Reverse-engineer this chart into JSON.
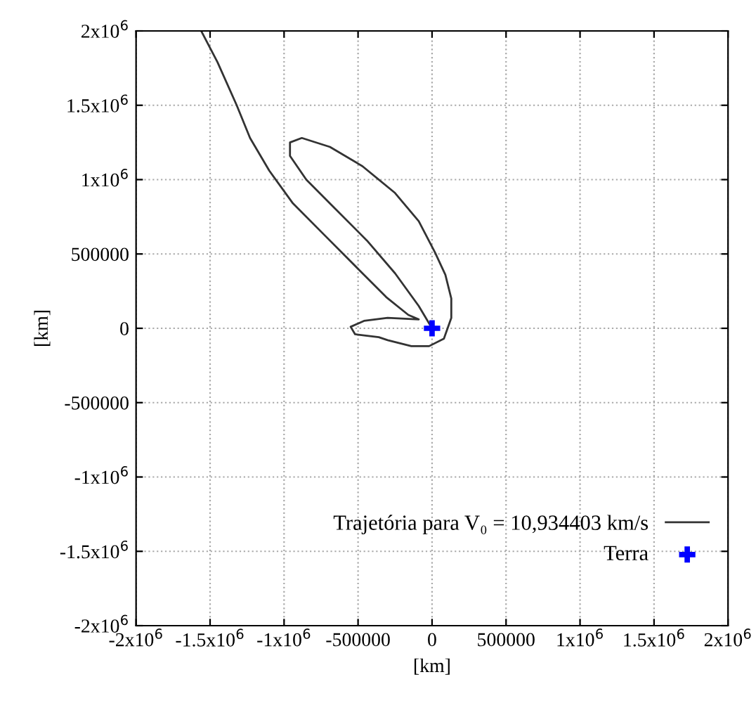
{
  "chart_data": {
    "type": "line",
    "xlabel": "[km]",
    "ylabel": "[km]",
    "series": [
      {
        "name": "Trajetória para V₀ = 10,934403 km/s",
        "color": "#333333",
        "marker": "none",
        "x": [
          -1560000,
          -1450000,
          -1320000,
          -1230000,
          -1100000,
          -940000,
          -720000,
          -500000,
          -310000,
          -160000,
          -90000,
          -300000,
          -460000,
          -550000,
          -520000,
          -360000,
          -300000,
          -140000,
          -20000,
          80000,
          130000,
          130000,
          90000,
          20000,
          -90000,
          -250000,
          -470000,
          -690000,
          -880000,
          -960000,
          -960000,
          -850000,
          -660000,
          -440000,
          -250000,
          -90000,
          0
        ],
        "values": [
          2000000,
          1790000,
          1500000,
          1280000,
          1060000,
          840000,
          620000,
          400000,
          210000,
          90000,
          60000,
          70000,
          50000,
          10000,
          -40000,
          -60000,
          -80000,
          -120000,
          -120000,
          -70000,
          70000,
          200000,
          360000,
          510000,
          720000,
          910000,
          1090000,
          1220000,
          1280000,
          1250000,
          1160000,
          1000000,
          810000,
          590000,
          370000,
          150000,
          0
        ]
      },
      {
        "name": "Terra",
        "color": "#0000ff",
        "type": "scatter",
        "marker": "cross",
        "x": [
          0
        ],
        "values": [
          0
        ]
      }
    ],
    "xlim": [
      -2000000,
      2000000
    ],
    "ylim": [
      -2000000,
      2000000
    ],
    "xticks": [
      {
        "value": -2000000,
        "label": "-2x10$^{6}$"
      },
      {
        "value": -1500000,
        "label": "-1.5x10$^{6}$"
      },
      {
        "value": -1000000,
        "label": "-1x10$^{6}$"
      },
      -500000,
      0,
      500000,
      {
        "value": 1000000,
        "label": "1x10$^{6}$"
      },
      {
        "value": 1500000,
        "label": "1.5x10$^{6}$"
      },
      {
        "value": 2000000,
        "label": "2x10$^{6}$"
      }
    ],
    "yticks": [
      {
        "value": -2000000,
        "label": "-2x10$^{6}$"
      },
      {
        "value": -1500000,
        "label": "-1.5x10$^{6}$"
      },
      {
        "value": -1000000,
        "label": "-1x10$^{6}$"
      },
      -500000,
      0,
      500000,
      {
        "value": 1000000,
        "label": "1x10$^{6}$"
      },
      {
        "value": 1500000,
        "label": "1.5x10$^{6}$"
      },
      {
        "value": 2000000,
        "label": "2x10$^{6}$"
      }
    ],
    "grid": true,
    "legend": "bottom right",
    "line_style": "solid"
  }
}
